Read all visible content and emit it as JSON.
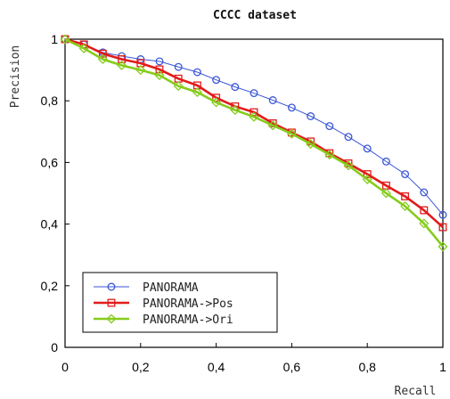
{
  "chart_data": {
    "type": "line",
    "title": "CCCC dataset",
    "xlabel": "Recall",
    "ylabel": "Precision",
    "xlim": [
      0,
      1
    ],
    "ylim": [
      0,
      1
    ],
    "x_ticks": [
      0,
      0.2,
      0.4,
      0.6,
      0.8,
      1
    ],
    "y_ticks": [
      0,
      0.2,
      0.4,
      0.6,
      0.8,
      1
    ],
    "x_tick_labels": [
      "0",
      "0,2",
      "0,4",
      "0,6",
      "0,8",
      "1"
    ],
    "y_tick_labels": [
      "0",
      "0,2",
      "0,4",
      "0,6",
      "0,8",
      "1"
    ],
    "grid": false,
    "legend_position": "bottom-left",
    "x": [
      0,
      0.05,
      0.1,
      0.15,
      0.2,
      0.25,
      0.3,
      0.35,
      0.4,
      0.45,
      0.5,
      0.55,
      0.6,
      0.65,
      0.7,
      0.75,
      0.8,
      0.85,
      0.9,
      0.95,
      1.0
    ],
    "series": [
      {
        "name": "PANORAMA",
        "marker": "circle",
        "color": "#3a56d4",
        "values": [
          1.0,
          0.983,
          0.957,
          0.945,
          0.935,
          0.928,
          0.91,
          0.893,
          0.868,
          0.845,
          0.825,
          0.802,
          0.778,
          0.75,
          0.718,
          0.683,
          0.645,
          0.603,
          0.562,
          0.503,
          0.43
        ]
      },
      {
        "name": "PANORAMA->Pos",
        "marker": "square",
        "color": "#e21b1b",
        "values": [
          1.0,
          0.983,
          0.953,
          0.935,
          0.922,
          0.902,
          0.872,
          0.85,
          0.81,
          0.782,
          0.763,
          0.727,
          0.697,
          0.668,
          0.63,
          0.597,
          0.562,
          0.525,
          0.49,
          0.445,
          0.39
        ]
      },
      {
        "name": "PANORAMA->Ori",
        "marker": "diamond",
        "color": "#86cc1c",
        "values": [
          1.0,
          0.97,
          0.935,
          0.915,
          0.9,
          0.883,
          0.848,
          0.828,
          0.795,
          0.77,
          0.748,
          0.72,
          0.693,
          0.66,
          0.625,
          0.59,
          0.545,
          0.5,
          0.458,
          0.402,
          0.327
        ]
      }
    ]
  }
}
